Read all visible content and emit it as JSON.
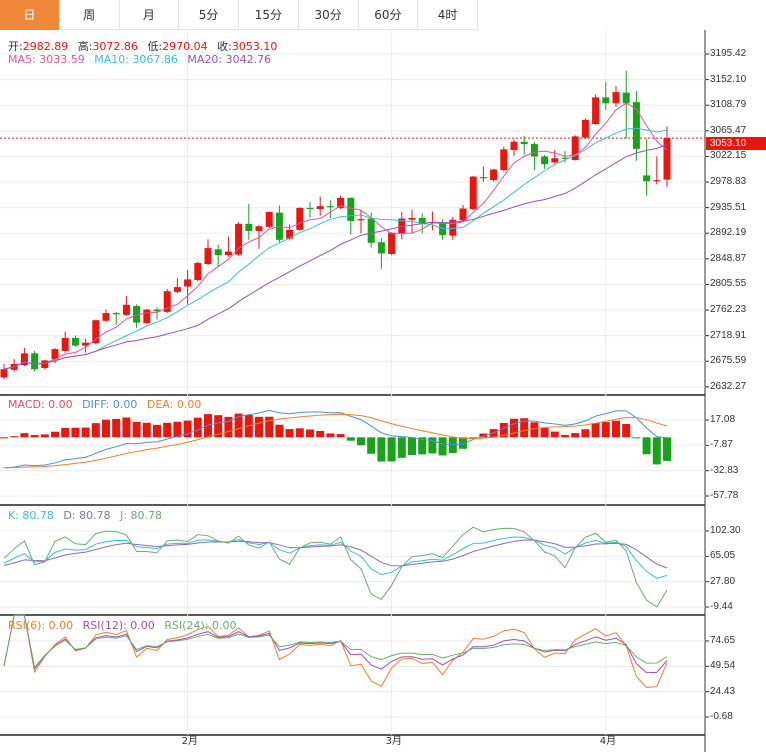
{
  "tabs": [
    "日",
    "周",
    "月",
    "5分",
    "15分",
    "30分",
    "60分",
    "4时"
  ],
  "active_tab": 0,
  "ohlc": {
    "open_label": "开:",
    "open": "2982.89",
    "high_label": "高:",
    "high": "3072.86",
    "low_label": "低:",
    "low": "2970.04",
    "close_label": "收:",
    "close": "3053.10"
  },
  "ma": {
    "ma5": "MA5: 3033.59",
    "ma10": "MA10: 3067.86",
    "ma20": "MA20: 3042.76"
  },
  "macd_legend": {
    "macd": "MACD: 0.00",
    "diff": "DIFF: 0.00",
    "dea": "DEA: 0.00"
  },
  "kdj_legend": {
    "k": "K: 80.78",
    "d": "D: 80.78",
    "j": "J: 80.78"
  },
  "rsi_legend": {
    "r6": "RSI(6): 0.00",
    "r12": "RSI(12): 0.00",
    "r24": "RSI(24): 0.00"
  },
  "current_price": "3053.10",
  "colors": {
    "up": "#e8170f",
    "down": "#17a31a",
    "ma5": "#e2559e",
    "ma10": "#3bbfd6",
    "ma20": "#9b4fc2",
    "orange": "#f0883a"
  },
  "chart_data": {
    "type": "candlestick",
    "price_axis": [
      "3195.42",
      "3152.10",
      "3108.79",
      "3065.47",
      "3022.15",
      "2978.83",
      "2935.51",
      "2892.19",
      "2848.87",
      "2805.55",
      "2762.23",
      "2718.91",
      "2675.59",
      "2632.27"
    ],
    "macd_axis": [
      "17.08",
      "-7.87",
      "-32.83",
      "-57.78"
    ],
    "kdj_axis": [
      "102.30",
      "65.05",
      "27.80",
      "-9.44"
    ],
    "rsi_axis": [
      "74.65",
      "49.54",
      "24.43",
      "-0.68"
    ],
    "date_labels": [
      "2月",
      "3月",
      "4月"
    ],
    "candles_ohlc": [
      [
        2648,
        2671,
        2645,
        2662
      ],
      [
        2661,
        2679,
        2658,
        2671
      ],
      [
        2669,
        2698,
        2667,
        2689
      ],
      [
        2689,
        2693,
        2658,
        2662
      ],
      [
        2664,
        2678,
        2662,
        2677
      ],
      [
        2679,
        2698,
        2672,
        2696
      ],
      [
        2693,
        2726,
        2690,
        2715
      ],
      [
        2715,
        2719,
        2700,
        2702
      ],
      [
        2702,
        2714,
        2690,
        2707
      ],
      [
        2706,
        2746,
        2704,
        2745
      ],
      [
        2744,
        2763,
        2742,
        2757
      ],
      [
        2757,
        2759,
        2737,
        2755
      ],
      [
        2754,
        2786,
        2752,
        2771
      ],
      [
        2769,
        2772,
        2732,
        2741
      ],
      [
        2740,
        2764,
        2738,
        2763
      ],
      [
        2763,
        2767,
        2746,
        2760
      ],
      [
        2759,
        2798,
        2757,
        2794
      ],
      [
        2793,
        2816,
        2791,
        2801
      ],
      [
        2802,
        2830,
        2772,
        2814
      ],
      [
        2813,
        2844,
        2811,
        2842
      ],
      [
        2840,
        2882,
        2838,
        2867
      ],
      [
        2865,
        2873,
        2834,
        2855
      ],
      [
        2855,
        2886,
        2852,
        2861
      ],
      [
        2856,
        2911,
        2854,
        2908
      ],
      [
        2908,
        2942,
        2881,
        2896
      ],
      [
        2896,
        2906,
        2866,
        2904
      ],
      [
        2903,
        2929,
        2901,
        2928
      ],
      [
        2927,
        2939,
        2876,
        2881
      ],
      [
        2883,
        2907,
        2880,
        2898
      ],
      [
        2898,
        2936,
        2896,
        2935
      ],
      [
        2935,
        2945,
        2919,
        2933
      ],
      [
        2933,
        2954,
        2922,
        2938
      ],
      [
        2938,
        2948,
        2918,
        2936
      ],
      [
        2935,
        2956,
        2933,
        2952
      ],
      [
        2952,
        2953,
        2890,
        2913
      ],
      [
        2914,
        2931,
        2892,
        2916
      ],
      [
        2917,
        2927,
        2868,
        2876
      ],
      [
        2877,
        2884,
        2832,
        2858
      ],
      [
        2857,
        2894,
        2855,
        2893
      ],
      [
        2891,
        2928,
        2882,
        2917
      ],
      [
        2915,
        2932,
        2893,
        2918
      ],
      [
        2918,
        2926,
        2892,
        2909
      ],
      [
        2910,
        2929,
        2897,
        2911
      ],
      [
        2909,
        2916,
        2881,
        2889
      ],
      [
        2888,
        2920,
        2881,
        2915
      ],
      [
        2914,
        2940,
        2912,
        2934
      ],
      [
        2933,
        2989,
        2931,
        2988
      ],
      [
        2986,
        3005,
        2979,
        2987
      ],
      [
        2982,
        3001,
        2980,
        3000
      ],
      [
        2999,
        3038,
        2997,
        3034
      ],
      [
        3033,
        3051,
        3023,
        3047
      ],
      [
        3047,
        3057,
        3025,
        3043
      ],
      [
        3043,
        3047,
        2999,
        3022
      ],
      [
        3022,
        3025,
        3001,
        3009
      ],
      [
        3012,
        3033,
        3008,
        3019
      ],
      [
        3020,
        3031,
        3012,
        3018
      ],
      [
        3016,
        3058,
        3015,
        3056
      ],
      [
        3054,
        3086,
        3052,
        3084
      ],
      [
        3077,
        3127,
        3075,
        3122
      ],
      [
        3122,
        3148,
        3101,
        3112
      ],
      [
        3112,
        3141,
        3106,
        3131
      ],
      [
        3130,
        3167,
        3052,
        3112
      ],
      [
        3114,
        3133,
        3015,
        3035
      ],
      [
        2990,
        3052,
        2956,
        2980
      ],
      [
        2980,
        3022,
        2975,
        2982
      ],
      [
        2982.89,
        3072.86,
        2970.04,
        3053.1
      ]
    ],
    "date_label_candle_index": [
      18,
      38,
      59
    ]
  }
}
